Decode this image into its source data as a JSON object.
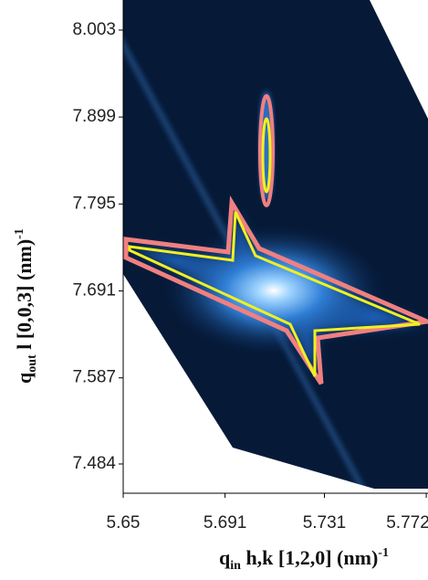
{
  "chart_data": {
    "type": "map",
    "xlabel": {
      "symbol": "q",
      "subscript": "in",
      "text": " h,k [1,2,0] (nm)",
      "superscript": "-1"
    },
    "ylabel": {
      "symbol": "q",
      "subscript": "out",
      "text": " l [0,0,3] (nm)",
      "superscript": "-1"
    },
    "xlim": [
      5.65,
      5.7727
    ],
    "xticks": [
      5.65,
      5.691,
      5.731,
      5.772
    ],
    "ylim": [
      7.449,
      8.039
    ],
    "yticks": [
      7.484,
      7.587,
      7.691,
      7.795,
      7.899,
      8.003
    ]
  }
}
